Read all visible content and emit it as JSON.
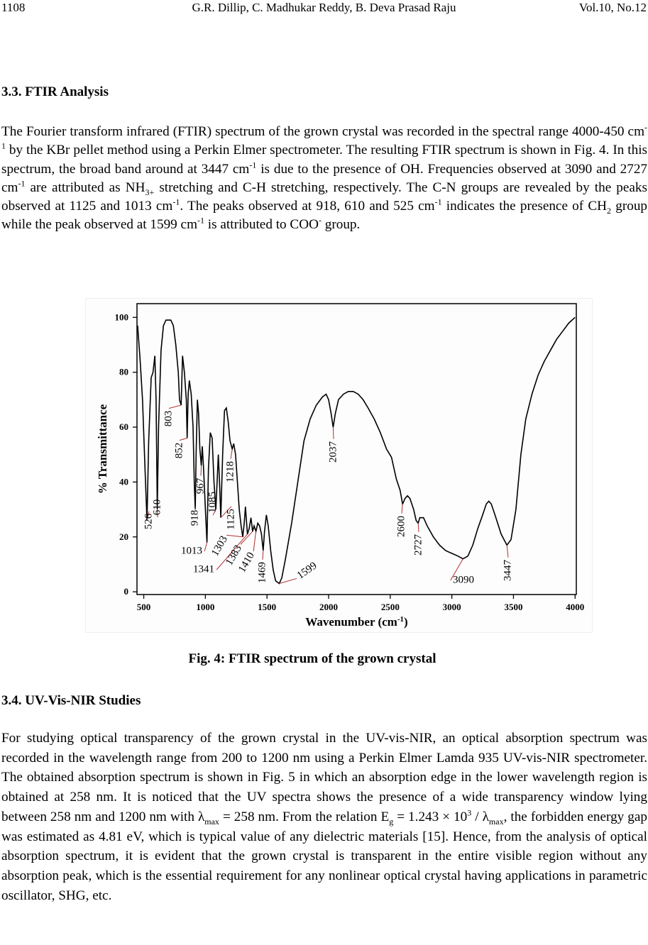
{
  "header": {
    "page": "1108",
    "authors": "G.R. Dillip, C. Madhukar Reddy, B. Deva Prasad Raju",
    "volume": "Vol.10, No.12"
  },
  "sections": [
    {
      "heading": "3.3. FTIR Analysis",
      "paragraph": [
        "The Fourier transform infrared (FTIR) spectrum of the grown crystal was recorded in the spectral range 4000-450 cm",
        {
          "sup": "-1"
        },
        " by the KBr pellet method using a Perkin Elmer spectrometer. The resulting FTIR spectrum is shown in Fig. 4. In this spectrum, the broad band around at 3447 cm",
        {
          "sup": "-1"
        },
        " is due to the presence of OH. Frequencies observed at 3090 and 2727 cm",
        {
          "sup": "-1"
        },
        " are attributed as NH",
        {
          "sub": "3+"
        },
        " stretching and C-H stretching, respectively. The C-N groups are revealed by the peaks observed at 1125 and 1013 cm",
        {
          "sup": "-1"
        },
        ". The peaks observed at 918, 610 and 525 cm",
        {
          "sup": "-1"
        },
        " indicates the presence of CH",
        {
          "sub": "2"
        },
        " group while the peak observed at 1599 cm",
        {
          "sup": "-1"
        },
        " is attributed to COO",
        {
          "sup": "-"
        },
        " group."
      ]
    },
    {
      "heading": "3.4. UV-Vis-NIR Studies",
      "paragraph": [
        "For studying optical transparency of the grown crystal in the UV-vis-NIR, an optical absorption spectrum was recorded in the wavelength range from 200 to 1200 nm using a Perkin Elmer Lamda 935 UV-vis-NIR spectrometer. The obtained absorption spectrum is shown in Fig. 5 in which an absorption edge in the lower wavelength region is obtained at 258 nm. It is noticed that the UV spectra shows the presence of a wide transparency window lying between 258 nm and 1200 nm with λ",
        {
          "sub": "max"
        },
        " = 258 nm.  From the relation E",
        {
          "sub": "g"
        },
        " = 1.243 × 10",
        {
          "sup": "3"
        },
        " / λ",
        {
          "sub": "max"
        },
        ", the forbidden energy gap was estimated as 4.81 eV, which is typical value of any dielectric materials [15]. Hence, from the analysis of optical absorption spectrum, it is evident that the grown crystal is transparent in the entire visible region without any absorption peak, which is the essential requirement for any nonlinear optical crystal having applications in parametric oscillator, SHG, etc."
      ]
    }
  ],
  "figure": {
    "caption": "Fig. 4: FTIR spectrum of the grown crystal"
  },
  "chart_data": {
    "type": "line",
    "xlabel": [
      "Wavenumber (cm",
      {
        "sup": "-1"
      },
      ")"
    ],
    "ylabel": "% Transmittance",
    "color": "#000000",
    "annotation_color": "#b03030",
    "xlim": [
      445,
      4010
    ],
    "ylim": [
      -1,
      105
    ],
    "xticks": [
      500,
      1000,
      1500,
      2000,
      2500,
      3000,
      3500,
      4000
    ],
    "yticks": [
      0,
      20,
      40,
      60,
      80,
      100
    ],
    "x": [
      450,
      470,
      490,
      510,
      526,
      540,
      560,
      575,
      590,
      600,
      610,
      620,
      640,
      660,
      680,
      720,
      740,
      760,
      780,
      790,
      803,
      815,
      830,
      845,
      852,
      860,
      870,
      885,
      900,
      910,
      918,
      925,
      935,
      945,
      955,
      967,
      975,
      985,
      1000,
      1013,
      1025,
      1040,
      1055,
      1070,
      1085,
      1095,
      1105,
      1115,
      1125,
      1140,
      1155,
      1170,
      1185,
      1200,
      1218,
      1230,
      1245,
      1260,
      1275,
      1290,
      1303,
      1315,
      1325,
      1341,
      1355,
      1370,
      1383,
      1395,
      1410,
      1425,
      1440,
      1455,
      1469,
      1480,
      1495,
      1510,
      1530,
      1550,
      1570,
      1599,
      1620,
      1650,
      1700,
      1750,
      1800,
      1850,
      1900,
      1950,
      1980,
      2000,
      2020,
      2037,
      2055,
      2080,
      2120,
      2160,
      2200,
      2240,
      2280,
      2320,
      2370,
      2420,
      2470,
      2510,
      2550,
      2580,
      2600,
      2620,
      2640,
      2660,
      2690,
      2710,
      2727,
      2740,
      2770,
      2800,
      2850,
      2900,
      2950,
      3000,
      3050,
      3090,
      3130,
      3170,
      3210,
      3250,
      3280,
      3300,
      3320,
      3350,
      3400,
      3447,
      3480,
      3520,
      3560,
      3600,
      3650,
      3700,
      3750,
      3800,
      3850,
      3900,
      3950,
      4000
    ],
    "values": [
      97,
      85,
      70,
      45,
      26,
      55,
      78,
      80,
      86,
      70,
      30,
      60,
      88,
      97,
      99,
      99,
      97,
      90,
      80,
      70,
      68,
      86,
      80,
      70,
      56,
      72,
      77,
      72,
      60,
      40,
      30,
      50,
      70,
      65,
      52,
      46,
      53,
      45,
      30,
      18,
      45,
      58,
      56,
      40,
      30,
      40,
      50,
      40,
      27,
      50,
      66,
      67,
      62,
      55,
      52,
      54,
      50,
      40,
      30,
      24,
      20,
      25,
      31,
      21,
      23,
      27,
      22,
      24,
      22,
      25,
      24,
      21,
      15,
      22,
      28,
      24,
      15,
      8,
      4,
      3,
      5,
      12,
      25,
      40,
      55,
      63,
      68,
      71,
      72,
      70,
      65,
      60,
      65,
      70,
      72,
      73,
      73,
      72,
      70,
      67,
      63,
      58,
      52,
      49,
      41,
      37,
      32,
      34,
      35,
      34,
      30,
      26,
      25,
      27,
      27,
      24,
      20,
      17,
      15,
      14,
      13,
      12,
      13,
      17,
      23,
      28,
      32,
      33,
      32,
      28,
      21,
      17,
      19,
      30,
      50,
      63,
      72,
      79,
      84,
      88,
      92,
      95,
      98,
      100
    ],
    "peaks": [
      526,
      610,
      803,
      852,
      918,
      967,
      1013,
      1085,
      1125,
      1218,
      1303,
      1341,
      1383,
      1410,
      1469,
      1599,
      2037,
      2600,
      2727,
      3090,
      3447
    ]
  }
}
